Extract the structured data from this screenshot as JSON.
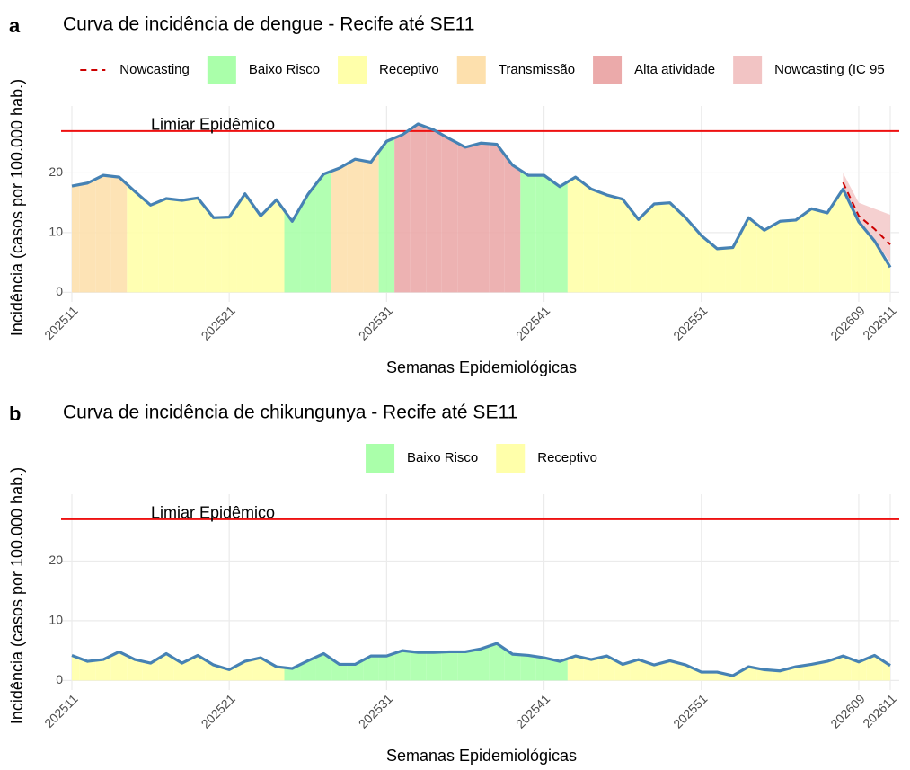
{
  "chart_data": [
    {
      "type": "area",
      "label": "a",
      "title": "Curva de incidência de dengue - Recife até SE11",
      "xlabel": "Semanas Epidemiológicas",
      "ylabel": "Incidência (casos por 100.000 hab.)",
      "categories": [
        "202511",
        null,
        null,
        null,
        null,
        null,
        null,
        null,
        null,
        null,
        "202521",
        null,
        null,
        null,
        null,
        null,
        null,
        null,
        null,
        null,
        "202531",
        null,
        null,
        null,
        null,
        null,
        null,
        null,
        null,
        null,
        "202541",
        null,
        null,
        null,
        null,
        null,
        null,
        null,
        null,
        null,
        "202551",
        null,
        null,
        null,
        null,
        null,
        null,
        null,
        null,
        null,
        "202609",
        null,
        "202611"
      ],
      "values": [
        17.8,
        18.3,
        19.6,
        19.3,
        16.9,
        14.6,
        15.7,
        15.4,
        15.8,
        12.5,
        12.6,
        16.5,
        12.8,
        15.5,
        11.9,
        16.4,
        19.8,
        20.8,
        22.3,
        21.8,
        25.3,
        26.4,
        28.2,
        27.2,
        25.7,
        24.3,
        25.0,
        24.8,
        21.3,
        19.6,
        19.6,
        17.7,
        19.3,
        17.3,
        16.3,
        15.6,
        12.2,
        14.8,
        15.0,
        12.5,
        9.5,
        7.3,
        7.5,
        12.5,
        10.4,
        11.9,
        12.1,
        14.0,
        13.3,
        17.3,
        11.8,
        8.6,
        4.2
      ],
      "line_color": "#4682b4",
      "levels": [
        {
          "name": "Baixo Risco",
          "color": "#aaffaa"
        },
        {
          "name": "Receptivo",
          "color": "#ffffaa"
        },
        {
          "name": "Transmissão",
          "color": "#fde0ad"
        },
        {
          "name": "Alta atividade",
          "color": "#ebaaaa"
        }
      ],
      "fill_levels": [
        2,
        2,
        2,
        2,
        1,
        1,
        1,
        1,
        1,
        1,
        1,
        1,
        1,
        1,
        0,
        0,
        0,
        2,
        2,
        2,
        0,
        3,
        3,
        3,
        3,
        3,
        3,
        3,
        3,
        0,
        0,
        0,
        1,
        1,
        1,
        1,
        1,
        1,
        1,
        1,
        1,
        1,
        1,
        1,
        1,
        1,
        1,
        1,
        1,
        1,
        1,
        1,
        1
      ],
      "nowcast": {
        "name": "Nowcasting",
        "color": "#cc0000",
        "values": [
          null,
          null,
          null,
          null,
          null,
          null,
          null,
          null,
          null,
          null,
          null,
          null,
          null,
          null,
          null,
          null,
          null,
          null,
          null,
          null,
          null,
          null,
          null,
          null,
          null,
          null,
          null,
          null,
          null,
          null,
          null,
          null,
          null,
          null,
          null,
          null,
          null,
          null,
          null,
          null,
          null,
          null,
          null,
          null,
          null,
          null,
          null,
          null,
          null,
          18.4,
          12.8,
          10.6,
          8.0
        ]
      },
      "band": {
        "name": "Nowcasting (IC 95",
        "color": "#f2c4c4",
        "lower": [
          null,
          null,
          null,
          null,
          null,
          null,
          null,
          null,
          null,
          null,
          null,
          null,
          null,
          null,
          null,
          null,
          null,
          null,
          null,
          null,
          null,
          null,
          null,
          null,
          null,
          null,
          null,
          null,
          null,
          null,
          null,
          null,
          null,
          null,
          null,
          null,
          null,
          null,
          null,
          null,
          null,
          null,
          null,
          null,
          null,
          null,
          null,
          null,
          null,
          17.2,
          11.5,
          8.8,
          5.0
        ],
        "upper": [
          null,
          null,
          null,
          null,
          null,
          null,
          null,
          null,
          null,
          null,
          null,
          null,
          null,
          null,
          null,
          null,
          null,
          null,
          null,
          null,
          null,
          null,
          null,
          null,
          null,
          null,
          null,
          null,
          null,
          null,
          null,
          null,
          null,
          null,
          null,
          null,
          null,
          null,
          null,
          null,
          null,
          null,
          null,
          null,
          null,
          null,
          null,
          null,
          null,
          20.0,
          15.0,
          14.0,
          13.0
        ]
      },
      "threshold": {
        "value": 27,
        "label": "Limiar Epidêmico",
        "color": "#ee1111"
      },
      "ylim": [
        -1,
        30
      ],
      "yticks": [
        0,
        10,
        20
      ],
      "grid": true
    },
    {
      "type": "area",
      "label": "b",
      "title": "Curva de incidência de chikungunya - Recife até SE11",
      "xlabel": "Semanas Epidemiológicas",
      "ylabel": "Incidência (casos por 100.000 hab.)",
      "categories": [
        "202511",
        null,
        null,
        null,
        null,
        null,
        null,
        null,
        null,
        null,
        "202521",
        null,
        null,
        null,
        null,
        null,
        null,
        null,
        null,
        null,
        "202531",
        null,
        null,
        null,
        null,
        null,
        null,
        null,
        null,
        null,
        "202541",
        null,
        null,
        null,
        null,
        null,
        null,
        null,
        null,
        null,
        "202551",
        null,
        null,
        null,
        null,
        null,
        null,
        null,
        null,
        null,
        "202609",
        null,
        "202611"
      ],
      "values": [
        4.2,
        3.2,
        3.5,
        4.8,
        3.5,
        2.9,
        4.5,
        2.9,
        4.2,
        2.6,
        1.8,
        3.2,
        3.8,
        2.3,
        2.0,
        3.3,
        4.5,
        2.7,
        2.7,
        4.1,
        4.1,
        5.0,
        4.7,
        4.7,
        4.8,
        4.8,
        5.3,
        6.2,
        4.4,
        4.2,
        3.8,
        3.2,
        4.1,
        3.5,
        4.1,
        2.7,
        3.5,
        2.6,
        3.3,
        2.6,
        1.4,
        1.4,
        0.8,
        2.3,
        1.8,
        1.6,
        2.3,
        2.7,
        3.2,
        4.1,
        3.1,
        4.2,
        2.5
      ],
      "line_color": "#4682b4",
      "levels": [
        {
          "name": "Baixo Risco",
          "color": "#aaffaa"
        },
        {
          "name": "Receptivo",
          "color": "#ffffaa"
        }
      ],
      "fill_levels": [
        1,
        1,
        1,
        1,
        1,
        1,
        1,
        1,
        1,
        1,
        1,
        1,
        1,
        1,
        0,
        0,
        0,
        0,
        0,
        0,
        0,
        0,
        0,
        0,
        0,
        0,
        0,
        0,
        0,
        0,
        0,
        0,
        1,
        1,
        1,
        1,
        1,
        1,
        1,
        1,
        1,
        1,
        1,
        1,
        1,
        1,
        1,
        1,
        1,
        1,
        1,
        1,
        1
      ],
      "threshold": {
        "value": 27,
        "label": "Limiar Epidêmico",
        "color": "#ee1111"
      },
      "ylim": [
        -1,
        30
      ],
      "yticks": [
        0,
        10,
        20
      ],
      "grid": true
    }
  ]
}
